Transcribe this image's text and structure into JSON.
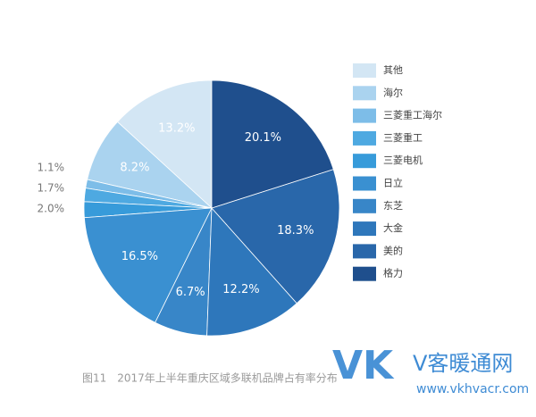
{
  "chart_data": {
    "type": "pie",
    "caption": "图11　2017年上半年重庆区域多联机品牌占有率分布",
    "categories": [
      "其他",
      "海尔",
      "三菱重工海尔",
      "三菱重工",
      "三菱电机",
      "日立",
      "东芝",
      "大金",
      "美的",
      "格力"
    ],
    "values": [
      13.2,
      8.2,
      1.1,
      1.7,
      2.0,
      16.5,
      6.7,
      12.2,
      18.3,
      20.1
    ],
    "value_labels": [
      "13.2%",
      "8.2%",
      "1.1%",
      "1.7%",
      "2.0%",
      "16.5%",
      "6.7%",
      "12.2%",
      "18.3%",
      "20.1%"
    ],
    "colors": [
      "#d3e6f4",
      "#aad3ef",
      "#7dbde8",
      "#4ea9e1",
      "#379bda",
      "#3a90d1",
      "#3886c8",
      "#2e77bb",
      "#2967aa",
      "#1f4f8d"
    ]
  },
  "watermark": {
    "logo": "VK",
    "brand": "V客暖通网",
    "url": "www.vkhvacr.com"
  }
}
